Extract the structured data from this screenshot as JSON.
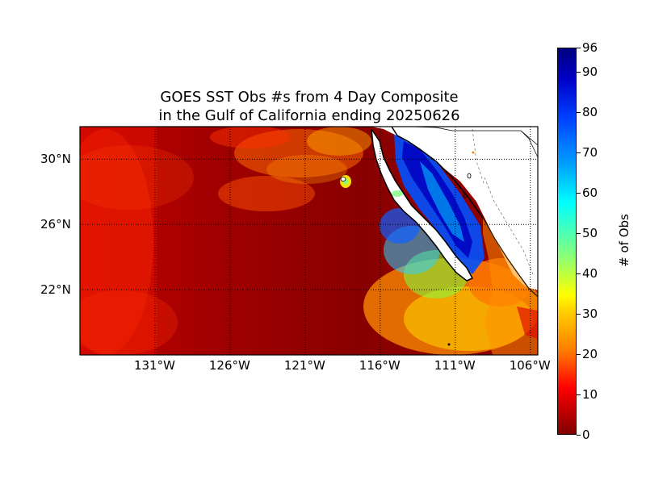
{
  "title_line1": "GOES SST Obs #s from 4 Day Composite",
  "title_line2": "in the Gulf of California ending 20250626",
  "lat_labels": [
    "30°N",
    "26°N",
    "22°N"
  ],
  "lon_labels": [
    "131°W",
    "126°W",
    "121°W",
    "116°W",
    "111°W",
    "106°W"
  ],
  "colorbar": {
    "label": "# of Obs",
    "ticks": [
      "0",
      "10",
      "20",
      "30",
      "40",
      "50",
      "60",
      "70",
      "80",
      "90",
      "96"
    ],
    "min": 0,
    "max": 96,
    "colormap": "jet_reversed_dark"
  },
  "map_extent": {
    "lon_min": -136,
    "lon_max": -105.5,
    "lat_min": 18,
    "lat_max": 32
  }
}
